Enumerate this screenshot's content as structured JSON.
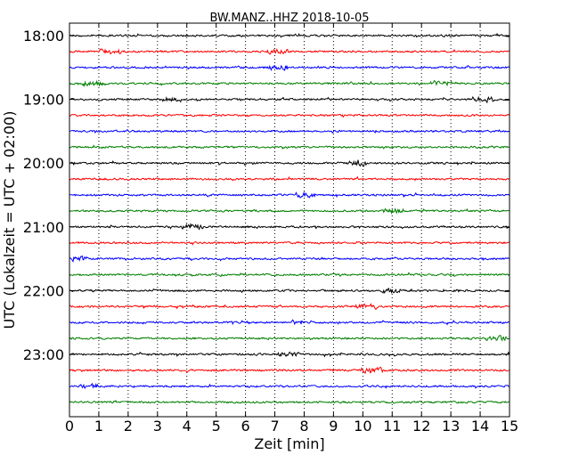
{
  "chart_data": {
    "type": "line",
    "title": "BW.MANZ..HHZ 2018-10-05",
    "xlabel": "Zeit  [min]",
    "ylabel": "UTC (Lokalzeit = UTC + 02:00)",
    "xlim": [
      0,
      15
    ],
    "x_ticks": [
      0,
      1,
      2,
      3,
      4,
      5,
      6,
      7,
      8,
      9,
      10,
      11,
      12,
      13,
      14,
      15
    ],
    "x_tick_labels": [
      "0",
      "1",
      "2",
      "3",
      "4",
      "5",
      "6",
      "7",
      "8",
      "9",
      "10",
      "11",
      "12",
      "13",
      "14",
      "15"
    ],
    "y_tick_labels": [
      "18:00",
      "19:00",
      "20:00",
      "21:00",
      "22:00",
      "23:00"
    ],
    "trace_start_times": [
      "18:00",
      "18:15",
      "18:30",
      "18:45",
      "19:00",
      "19:15",
      "19:30",
      "19:45",
      "20:00",
      "20:15",
      "20:30",
      "20:45",
      "21:00",
      "21:15",
      "21:30",
      "21:45",
      "22:00",
      "22:15",
      "22:30",
      "22:45",
      "23:00",
      "23:15",
      "23:30",
      "23:45"
    ],
    "trace_colors": [
      "#000000",
      "#ff0000",
      "#0000ff",
      "#007f00"
    ],
    "grid": {
      "vertical_dotted": true,
      "horizontal": false
    },
    "legend": "none"
  }
}
